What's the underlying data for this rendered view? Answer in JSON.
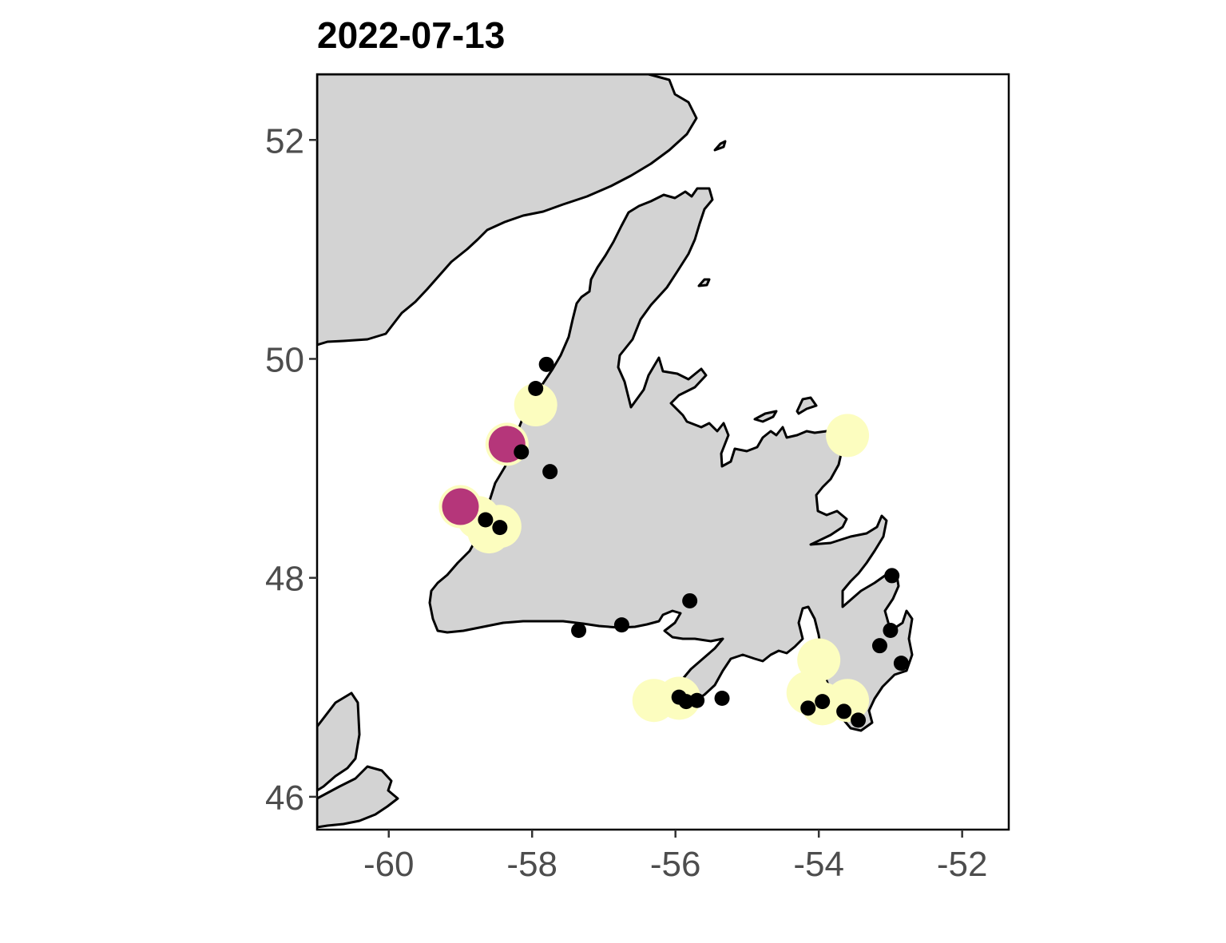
{
  "title": "2022-07-13",
  "chart_data": {
    "type": "map",
    "title": "2022-07-13",
    "xlim": [
      -61.0,
      -51.35
    ],
    "ylim": [
      45.7,
      52.6
    ],
    "x_ticks": [
      -60,
      -58,
      -56,
      -54,
      -52
    ],
    "y_ticks": [
      46,
      48,
      50,
      52
    ],
    "x_tick_labels": [
      "-60",
      "-58",
      "-56",
      "-54",
      "-52"
    ],
    "y_tick_labels": [
      "46",
      "48",
      "50",
      "52"
    ],
    "grid": false,
    "land_color": "#d3d3d3",
    "coast_color": "#000000",
    "water_color": "#ffffff",
    "bubble_colors": {
      "high": "#b5367a",
      "low": "#fcfdbf"
    },
    "bubbles": [
      {
        "lon": -57.95,
        "lat": 49.58,
        "level": "low"
      },
      {
        "lon": -58.35,
        "lat": 49.22,
        "level": "low"
      },
      {
        "lon": -58.35,
        "lat": 49.22,
        "level": "high"
      },
      {
        "lon": -59.0,
        "lat": 48.65,
        "level": "low"
      },
      {
        "lon": -59.0,
        "lat": 48.65,
        "level": "high"
      },
      {
        "lon": -58.75,
        "lat": 48.55,
        "level": "low"
      },
      {
        "lon": -58.6,
        "lat": 48.42,
        "level": "low"
      },
      {
        "lon": -58.45,
        "lat": 48.47,
        "level": "low"
      },
      {
        "lon": -53.6,
        "lat": 49.3,
        "level": "low"
      },
      {
        "lon": -56.3,
        "lat": 46.88,
        "level": "low"
      },
      {
        "lon": -55.95,
        "lat": 46.9,
        "level": "low"
      },
      {
        "lon": -54.0,
        "lat": 47.25,
        "level": "low"
      },
      {
        "lon": -54.15,
        "lat": 46.95,
        "level": "low"
      },
      {
        "lon": -53.95,
        "lat": 46.85,
        "level": "low"
      },
      {
        "lon": -53.6,
        "lat": 46.88,
        "level": "low"
      }
    ],
    "stations": [
      {
        "lon": -57.8,
        "lat": 49.95
      },
      {
        "lon": -57.95,
        "lat": 49.73
      },
      {
        "lon": -58.15,
        "lat": 49.15
      },
      {
        "lon": -57.75,
        "lat": 48.97
      },
      {
        "lon": -58.65,
        "lat": 48.53
      },
      {
        "lon": -58.45,
        "lat": 48.46
      },
      {
        "lon": -57.35,
        "lat": 47.52
      },
      {
        "lon": -56.75,
        "lat": 47.57
      },
      {
        "lon": -55.8,
        "lat": 47.79
      },
      {
        "lon": -55.95,
        "lat": 46.91
      },
      {
        "lon": -55.85,
        "lat": 46.87
      },
      {
        "lon": -55.7,
        "lat": 46.88
      },
      {
        "lon": -55.35,
        "lat": 46.9
      },
      {
        "lon": -54.15,
        "lat": 46.81
      },
      {
        "lon": -53.95,
        "lat": 46.87
      },
      {
        "lon": -53.65,
        "lat": 46.78
      },
      {
        "lon": -53.45,
        "lat": 46.7
      },
      {
        "lon": -53.15,
        "lat": 47.38
      },
      {
        "lon": -53.0,
        "lat": 47.52
      },
      {
        "lon": -52.85,
        "lat": 47.22
      },
      {
        "lon": -52.98,
        "lat": 48.02
      }
    ]
  }
}
